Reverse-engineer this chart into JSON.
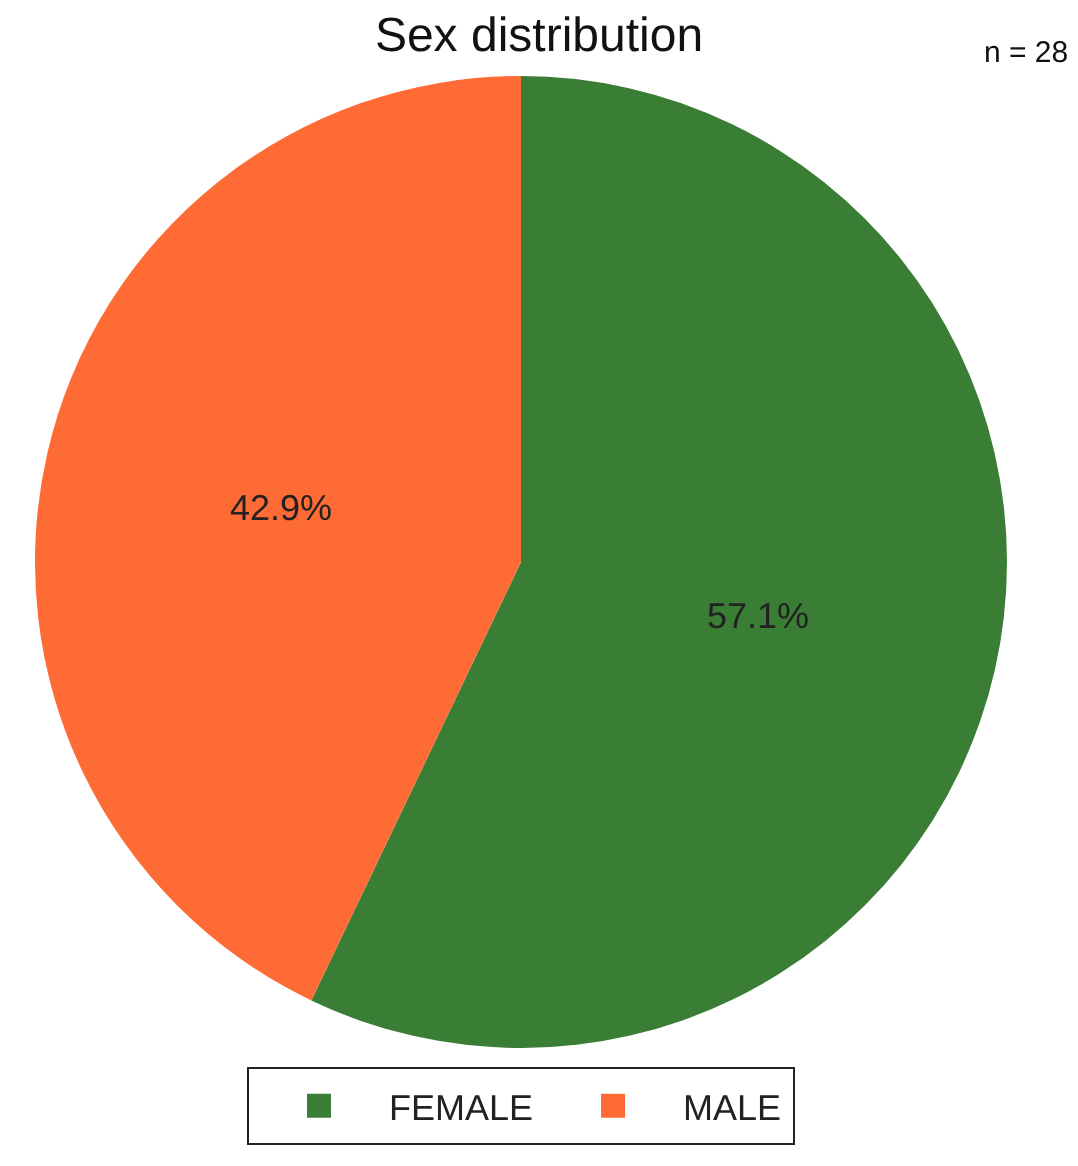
{
  "chart_data": {
    "type": "pie",
    "title": "Sex distribution",
    "annotations": [
      "n = 28"
    ],
    "categories": [
      "FEMALE",
      "MALE"
    ],
    "values": [
      57.1,
      42.9
    ],
    "value_labels": [
      "57.1%",
      "42.9%"
    ],
    "colors": [
      "#3a7d35",
      "#ff6b35"
    ],
    "legend": "bottom"
  }
}
